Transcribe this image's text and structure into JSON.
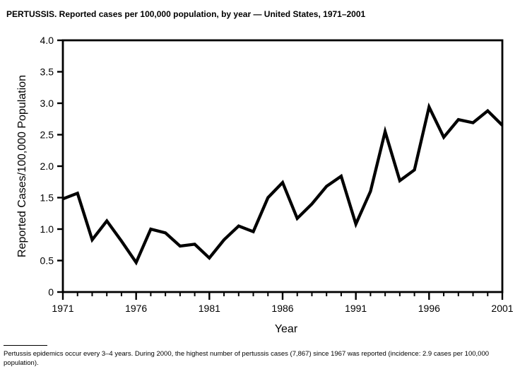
{
  "title": "PERTUSSIS. Reported cases per 100,000 population, by year — United States, 1971–2001",
  "chart_data": {
    "type": "line",
    "title": "PERTUSSIS. Reported cases per 100,000 population, by year — United States, 1971–2001",
    "xlabel": "Year",
    "ylabel": "Reported Cases/100,000 Population",
    "x": [
      1971,
      1972,
      1973,
      1974,
      1975,
      1976,
      1977,
      1978,
      1979,
      1980,
      1981,
      1982,
      1983,
      1984,
      1985,
      1986,
      1987,
      1988,
      1989,
      1990,
      1991,
      1992,
      1993,
      1994,
      1995,
      1996,
      1997,
      1998,
      1999,
      2000,
      2001
    ],
    "values": [
      1.48,
      1.57,
      0.83,
      1.13,
      0.81,
      0.47,
      1.0,
      0.94,
      0.73,
      0.76,
      0.54,
      0.83,
      1.05,
      0.96,
      1.5,
      1.74,
      1.17,
      1.4,
      1.68,
      1.84,
      1.08,
      1.6,
      2.55,
      1.77,
      1.94,
      2.94,
      2.46,
      2.74,
      2.69,
      2.88,
      2.65
    ],
    "xlim": [
      1971,
      2001
    ],
    "ylim": [
      0,
      4.0
    ],
    "xticks": [
      1971,
      1976,
      1981,
      1986,
      1991,
      1996,
      2001
    ],
    "xtick_labels": [
      "1971",
      "1976",
      "1981",
      "1986",
      "1991",
      "1996",
      "2001"
    ],
    "yticks": [
      0,
      0.5,
      1.0,
      1.5,
      2.0,
      2.5,
      3.0,
      3.5,
      4.0
    ],
    "ytick_labels": [
      "0",
      "0.5",
      "1.0",
      "1.5",
      "2.0",
      "2.5",
      "3.0",
      "3.5",
      "4.0"
    ],
    "grid": false,
    "legend": null,
    "line_color": "#000000",
    "frame_color": "#000000",
    "background_color": "#ffffff"
  },
  "footnote": {
    "line1": "Pertussis epidemics occur every 3–4 years. During 2000, the highest number of pertussis cases (7,867) since 1967 was reported (incidence: 2.9 cases per 100,000",
    "line2": "population)."
  }
}
